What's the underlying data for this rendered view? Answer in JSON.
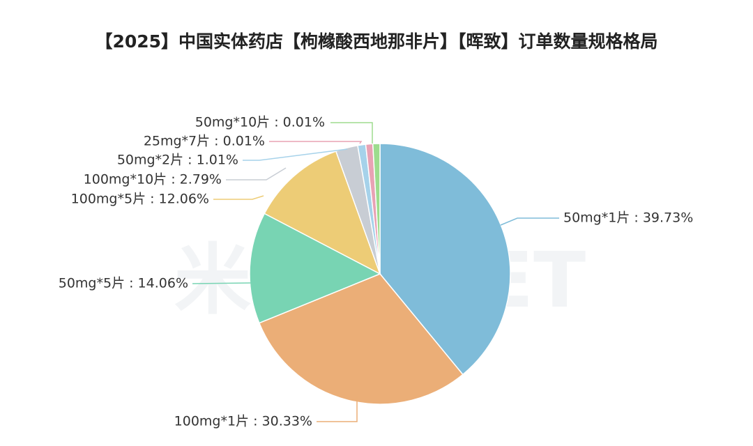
{
  "chart_data": {
    "type": "pie",
    "title": "【2025】中国实体药店【枸橼酸西地那非片】【晖致】订单数量规格格局",
    "slices": [
      {
        "label": "50mg*1片",
        "value": 39.73,
        "display": "50mg*1片 : 39.73%",
        "color": "#7fbcd9"
      },
      {
        "label": "100mg*1片",
        "value": 30.33,
        "display": "100mg*1片 : 30.33%",
        "color": "#ebae77"
      },
      {
        "label": "50mg*5片",
        "value": 14.06,
        "display": "50mg*5片 : 14.06%",
        "color": "#78d4b3"
      },
      {
        "label": "100mg*5片",
        "value": 12.06,
        "display": "100mg*5片 : 12.06%",
        "color": "#edcc76"
      },
      {
        "label": "100mg*10片",
        "value": 2.79,
        "display": "100mg*10片 : 2.79%",
        "color": "#c8cdd4"
      },
      {
        "label": "50mg*2片",
        "value": 1.01,
        "display": "50mg*2片 : 1.01%",
        "color": "#a6d2ea"
      },
      {
        "label": "25mg*7片",
        "value": 0.01,
        "display": "25mg*7片 : 0.01%",
        "color": "#e8a2b4"
      },
      {
        "label": "50mg*10片",
        "value": 0.01,
        "display": "50mg*10片 : 0.01%",
        "color": "#9ddc8e"
      }
    ],
    "unit": "%"
  }
}
